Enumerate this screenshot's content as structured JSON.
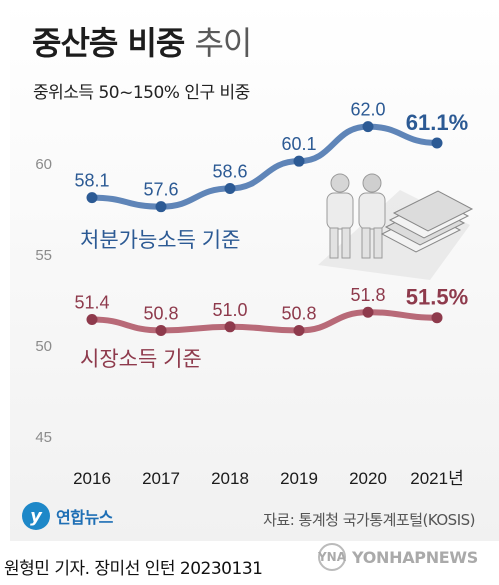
{
  "header": {
    "title_bold": "중산층 비중",
    "title_light": "추이",
    "subtitle": "중위소득 50~150% 인구 비중"
  },
  "chart_data": {
    "type": "line",
    "categories": [
      "2016",
      "2017",
      "2018",
      "2019",
      "2020",
      "2021년"
    ],
    "ylim": [
      45,
      63
    ],
    "yticks": [
      "45",
      "50",
      "55",
      "60"
    ],
    "grid": false,
    "series": [
      {
        "name": "처분가능소득 기준",
        "values": [
          58.1,
          57.6,
          58.6,
          60.1,
          62.0,
          61.1
        ],
        "labels": [
          "58.1",
          "57.6",
          "58.6",
          "60.1",
          "62.0",
          "61.1%"
        ],
        "color": "#5f85b8",
        "label_color": "#2c5a94"
      },
      {
        "name": "시장소득 기준",
        "values": [
          51.4,
          50.8,
          51.0,
          50.8,
          51.8,
          51.5
        ],
        "labels": [
          "51.4",
          "50.8",
          "51.0",
          "50.8",
          "51.8",
          "51.5%"
        ],
        "color": "#b86a78",
        "label_color": "#8e3a4c"
      }
    ]
  },
  "footer": {
    "logo_mark": "y",
    "logo_text": "연합뉴스",
    "source": "자료: 통계청 국가통계포털(KOSIS)",
    "credit": "원형민 기자. 장미선 인턴  20230131",
    "watermark_mark": "YNA",
    "watermark": "YONHAPNEWS"
  }
}
